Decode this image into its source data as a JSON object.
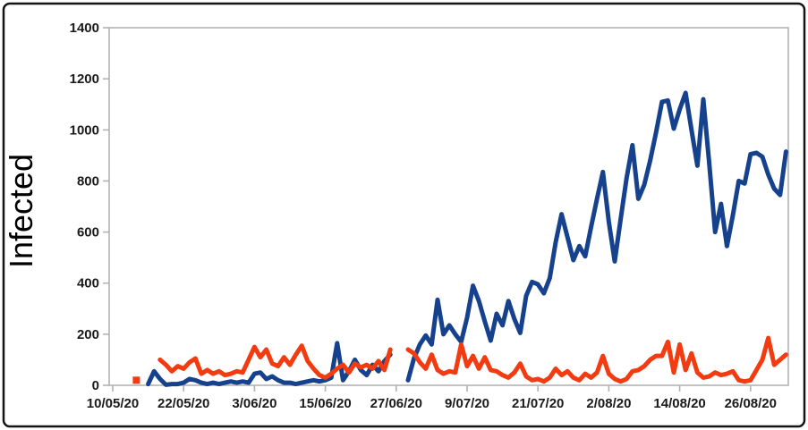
{
  "figure": {
    "ylabel": "Infected",
    "border_color": "#141414",
    "background": "#ffffff"
  },
  "chart_data": {
    "type": "line",
    "title": "",
    "xlabel": "",
    "ylabel": "Infected",
    "ylim": [
      0,
      1400
    ],
    "y_ticks": [
      0,
      200,
      400,
      600,
      800,
      1000,
      1200,
      1400
    ],
    "x_tick_labels": [
      "10/05/20",
      "22/05/20",
      "3/06/20",
      "15/06/20",
      "27/06/20",
      "9/07/20",
      "21/07/20",
      "2/08/20",
      "14/08/20",
      "26/08/20"
    ],
    "x_tick_day_index": [
      0,
      12,
      24,
      36,
      48,
      60,
      72,
      84,
      96,
      108
    ],
    "x_unit": "daily values, day index 0 = 10/05/20",
    "n_points": 115,
    "grid": "outer frame only, no inner gridlines",
    "legend": "none",
    "axis_color": "#b3b3b3",
    "tick_label_color": "#1a1a1a",
    "series": [
      {
        "name": "blue-series",
        "color": "#16418c",
        "values": [
          null,
          null,
          null,
          null,
          null,
          null,
          5,
          55,
          25,
          2,
          5,
          5,
          10,
          25,
          20,
          10,
          5,
          10,
          5,
          10,
          15,
          10,
          15,
          10,
          45,
          50,
          25,
          35,
          20,
          10,
          10,
          5,
          10,
          15,
          20,
          15,
          20,
          30,
          165,
          20,
          55,
          100,
          60,
          40,
          80,
          55,
          95,
          120,
          null,
          null,
          20,
          105,
          160,
          195,
          160,
          335,
          200,
          235,
          200,
          170,
          265,
          390,
          330,
          250,
          175,
          280,
          235,
          330,
          260,
          205,
          350,
          405,
          395,
          360,
          420,
          560,
          670,
          580,
          490,
          545,
          505,
          620,
          730,
          835,
          640,
          485,
          650,
          810,
          940,
          730,
          785,
          880,
          990,
          1110,
          1115,
          1005,
          1080,
          1145,
          1000,
          860,
          1120,
          870,
          600,
          710,
          545,
          665,
          800,
          790,
          905,
          910,
          895,
          825,
          770,
          745,
          915
        ]
      },
      {
        "name": "orange-series",
        "color": "#f23b10",
        "values": [
          null,
          null,
          null,
          null,
          20,
          null,
          null,
          null,
          100,
          80,
          55,
          75,
          65,
          90,
          105,
          45,
          60,
          45,
          55,
          40,
          45,
          55,
          50,
          100,
          150,
          110,
          140,
          85,
          75,
          110,
          80,
          120,
          155,
          95,
          65,
          40,
          30,
          45,
          65,
          80,
          50,
          85,
          70,
          80,
          65,
          95,
          60,
          140,
          null,
          null,
          140,
          125,
          90,
          65,
          120,
          60,
          45,
          55,
          50,
          160,
          75,
          115,
          65,
          110,
          60,
          55,
          40,
          30,
          50,
          85,
          35,
          20,
          25,
          15,
          30,
          65,
          40,
          55,
          30,
          20,
          45,
          30,
          50,
          115,
          45,
          25,
          15,
          25,
          55,
          60,
          75,
          100,
          115,
          115,
          170,
          50,
          160,
          60,
          125,
          50,
          30,
          35,
          50,
          40,
          45,
          55,
          20,
          15,
          20,
          60,
          100,
          185,
          80,
          100,
          120
        ]
      }
    ]
  }
}
